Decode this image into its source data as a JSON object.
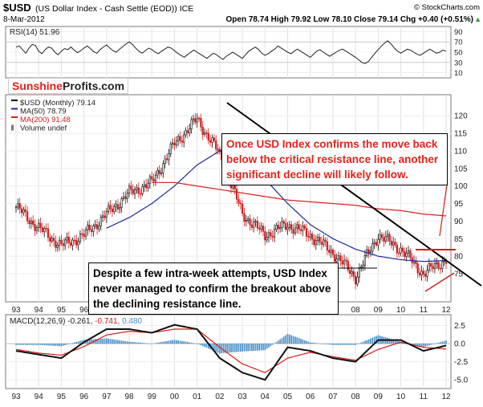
{
  "header": {
    "symbol": "$USD",
    "name": "(US Dollar Index - Cash Settle (EOD)) ICE",
    "watermark": "© StockCharts.com",
    "date": "8-Mar-2012",
    "ohlc": "Open 78.74  High 79.92  Low 78.10  Close 79.14  Chg +0.40 (+0.51%)",
    "ohlc_up_arrow": "▲"
  },
  "logo": {
    "part1": "Sunshine",
    "part2": "Profits.com"
  },
  "rsi_panel": {
    "label": "RSI(14) 51.96",
    "ticks": [
      "90",
      "70",
      "50",
      "30",
      "10"
    ],
    "tick_values": [
      90,
      70,
      50,
      30,
      10
    ],
    "ylim": [
      0,
      100
    ],
    "values": [
      60,
      62,
      55,
      48,
      58,
      65,
      63,
      52,
      47,
      55,
      60,
      58,
      50,
      45,
      52,
      57,
      55,
      60,
      54,
      49,
      53,
      58,
      62,
      57,
      51,
      48,
      55,
      60,
      64,
      58,
      53,
      50,
      56,
      61,
      66,
      70,
      65,
      58,
      52,
      48,
      53,
      58,
      55,
      50,
      47,
      52,
      56,
      60,
      58,
      53,
      48,
      44,
      40,
      45,
      50,
      54,
      50,
      46,
      42,
      38,
      43,
      48,
      45,
      40,
      36,
      42,
      46,
      50,
      46,
      42,
      38,
      45,
      52,
      56,
      60,
      55,
      48,
      44,
      47,
      52,
      56,
      62,
      58,
      54,
      50,
      47,
      52,
      56,
      52,
      48,
      44,
      40,
      46,
      52,
      55,
      50,
      46,
      42,
      46,
      50,
      54,
      56,
      52,
      48,
      44,
      40,
      35,
      30,
      28,
      32,
      40,
      48,
      55,
      62,
      68,
      72,
      66,
      58,
      52,
      48,
      52,
      56,
      54,
      50,
      46,
      44,
      48,
      52,
      56,
      52,
      48,
      50,
      54,
      52
    ]
  },
  "price_panel": {
    "legend": [
      {
        "label": "$USD (Monthly) 79.14",
        "color": "#000000"
      },
      {
        "label": "MA(50) 78.79",
        "color": "#1f2a9c"
      },
      {
        "label": "MA(200) 91.48",
        "color": "#d81c1c"
      },
      {
        "label": "Volume undef",
        "color": "#777777"
      }
    ],
    "ticks": [
      "120",
      "115",
      "110",
      "105",
      "100",
      "95",
      "90",
      "85",
      "80",
      "75"
    ],
    "tick_values": [
      120,
      115,
      110,
      105,
      100,
      95,
      90,
      85,
      80,
      75
    ]
  },
  "macd_panel": {
    "label_prefix": "MACD(12,26,9)",
    "label_macd": "-0.261,",
    "label_signal": "-0.741,",
    "label_hist": "0.480",
    "ticks": [
      "2.5",
      "0.0",
      "-2.5",
      "-5.0"
    ],
    "tick_values": [
      2.5,
      0.0,
      -2.5,
      -5.0
    ],
    "ylim": [
      -6.2,
      4.0
    ]
  },
  "x_axis": {
    "labels": [
      "93",
      "94",
      "95",
      "96",
      "97",
      "98",
      "99",
      "00",
      "01",
      "02",
      "03",
      "04",
      "05",
      "06",
      "07",
      "08",
      "09",
      "10",
      "11",
      "12"
    ]
  },
  "annotations": {
    "top": "Once USD Index confirms the move back below the critical resistance line, another significant decline will likely follow.",
    "bottom": "Despite a few intra-week attempts, USD Index never managed to confirm the breakout above the declining resistance line."
  },
  "chart_data": {
    "type": "line",
    "title": "$USD (US Dollar Index - Cash Settle (EOD)) ICE",
    "x": [
      "1993",
      "1994",
      "1995",
      "1996",
      "1997",
      "1998",
      "1999",
      "2000",
      "2001",
      "2002",
      "2003",
      "2004",
      "2005",
      "2006",
      "2007",
      "2008",
      "2009",
      "2010",
      "2011",
      "2012"
    ],
    "series": [
      {
        "name": "$USD (Monthly)",
        "values": [
          94,
          88,
          83,
          86,
          92,
          98,
          101,
          112,
          119,
          109,
          92,
          86,
          89,
          86,
          81,
          74,
          86,
          82,
          75,
          79.14
        ]
      },
      {
        "name": "MA(50)",
        "values": [
          null,
          null,
          null,
          null,
          88,
          91,
          95,
          100,
          106,
          110,
          108,
          102,
          95,
          89,
          85,
          82,
          80,
          79,
          78.5,
          78.79
        ]
      },
      {
        "name": "MA(200)",
        "values": [
          null,
          null,
          null,
          null,
          null,
          null,
          101,
          101,
          100,
          99,
          98,
          97,
          96,
          95.5,
          95,
          94.5,
          93.5,
          93,
          92,
          91.48
        ]
      }
    ],
    "ylim": [
      67,
      126
    ],
    "lines": [
      "declining resistance line",
      "horizontal resistance near 81",
      "rising support line"
    ],
    "macd": {
      "x": [
        "1993",
        "1994",
        "1995",
        "1996",
        "1997",
        "1998",
        "1999",
        "2000",
        "2001",
        "2002",
        "2003",
        "2004",
        "2005",
        "2006",
        "2007",
        "2008",
        "2009",
        "2010",
        "2011",
        "2012"
      ],
      "macd": [
        -1.0,
        -1.5,
        -2.0,
        0.2,
        2.0,
        2.0,
        1.5,
        2.6,
        2.0,
        -2.0,
        -4.0,
        -5.0,
        -0.5,
        -1.0,
        -2.0,
        -2.5,
        0.5,
        0.5,
        -1.0,
        -0.261
      ],
      "signal": [
        -0.8,
        -1.3,
        -1.6,
        -0.4,
        1.2,
        1.7,
        1.5,
        2.0,
        2.0,
        -0.5,
        -2.8,
        -4.0,
        -2.0,
        -1.2,
        -1.8,
        -2.3,
        -0.8,
        0.2,
        -0.5,
        -0.741
      ],
      "histogram_last": 0.48
    }
  }
}
